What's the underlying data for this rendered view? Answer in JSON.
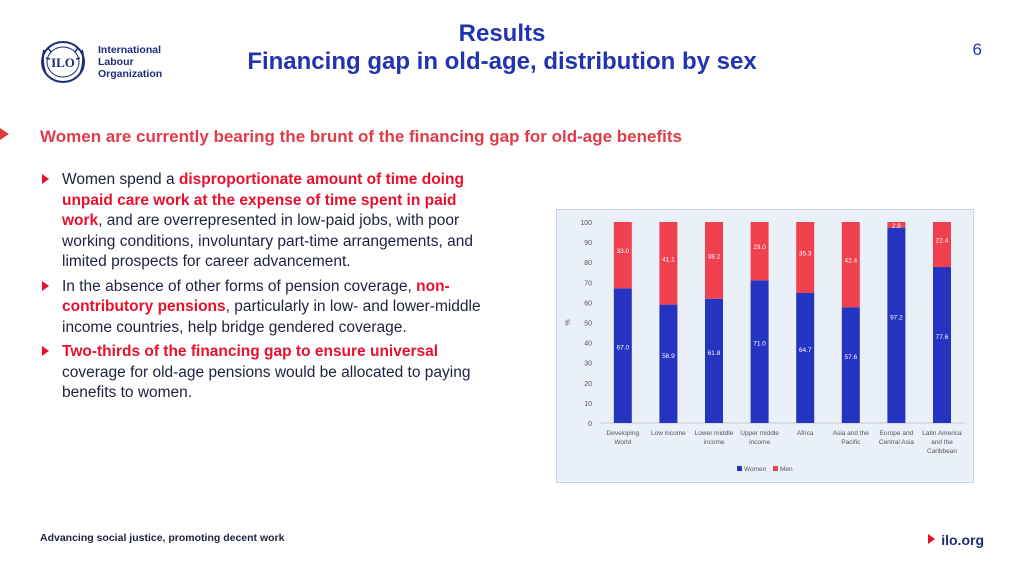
{
  "header": {
    "org_name_lines": [
      "International",
      "Labour",
      "Organization"
    ],
    "title_line1": "Results",
    "title_line2": "Financing gap in old-age, distribution by sex",
    "page_number": "6"
  },
  "subtitle": "Women are currently bearing the brunt of the financing gap for old-age benefits",
  "bullets": [
    {
      "segments": [
        {
          "text": "Women spend a ",
          "emphasis": false
        },
        {
          "text": "disproportionate amount of time doing unpaid care work at the expense of time spent in paid work",
          "emphasis": true
        },
        {
          "text": ", and are overrepresented in low-paid jobs, with poor working conditions, involuntary part-time arrangements,  and limited prospects for career advancement.",
          "emphasis": false
        }
      ]
    },
    {
      "segments": [
        {
          "text": "In the absence of other forms of pension coverage, ",
          "emphasis": false
        },
        {
          "text": "non-contributory pensions",
          "emphasis": true
        },
        {
          "text": ", particularly in low- and lower-middle income countries, help bridge gendered coverage.",
          "emphasis": false
        }
      ]
    },
    {
      "segments": [
        {
          "text": "Two-thirds of the financing gap to ensure universal",
          "emphasis": true
        },
        {
          "text": " coverage for old-age pensions would be allocated to paying benefits to women.",
          "emphasis": false
        }
      ]
    }
  ],
  "chart_data": {
    "type": "bar",
    "stacked": true,
    "categories": [
      [
        "Developing",
        "World"
      ],
      [
        "Low income"
      ],
      [
        "Lower middle",
        "income"
      ],
      [
        "Upper middle",
        "income"
      ],
      [
        "Africa"
      ],
      [
        "Asia and the",
        "Pacific"
      ],
      [
        "Europe and",
        "Central Asia"
      ],
      [
        "Latin America",
        "and the",
        "Caribbean"
      ]
    ],
    "series": [
      {
        "name": "Women",
        "color": "#2534c0",
        "values": [
          67.0,
          58.9,
          61.8,
          71.0,
          64.7,
          57.6,
          97.2,
          77.6
        ]
      },
      {
        "name": "Men",
        "color": "#f0414e",
        "values": [
          33.0,
          41.1,
          38.2,
          29.0,
          35.3,
          42.4,
          2.8,
          22.4
        ]
      }
    ],
    "ylabel": "%",
    "ylim": [
      0,
      100
    ],
    "yticks": [
      0,
      10,
      20,
      30,
      40,
      50,
      60,
      70,
      80,
      90,
      100
    ],
    "grid": false,
    "legend_position": "bottom"
  },
  "footer": {
    "tagline": "Advancing social justice, promoting decent work",
    "site": "ilo.org"
  }
}
